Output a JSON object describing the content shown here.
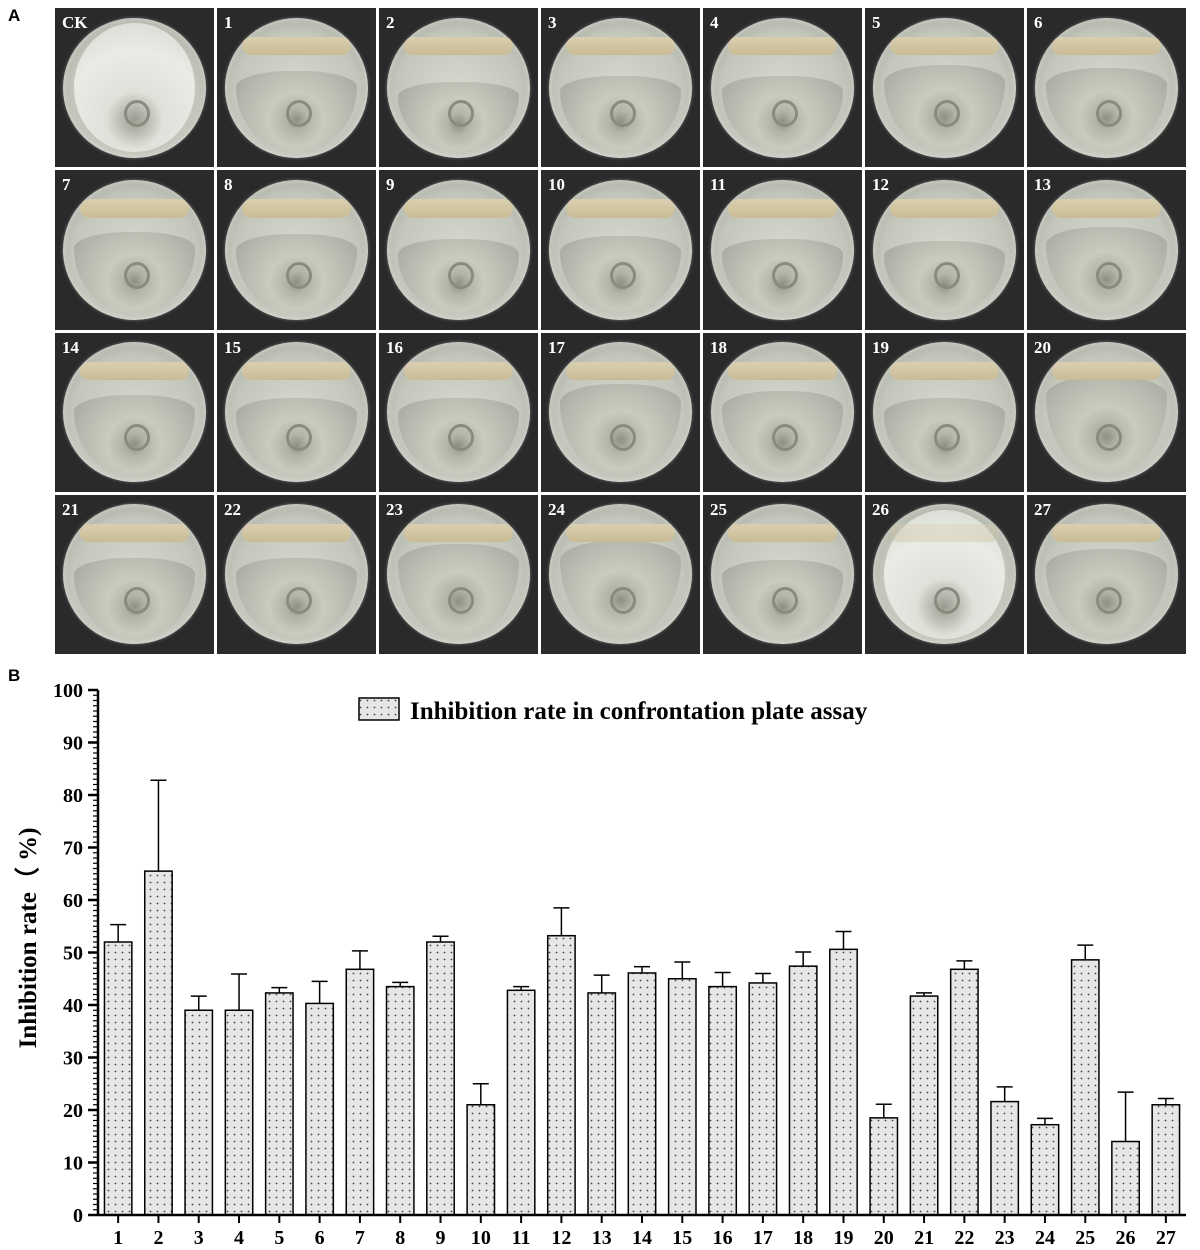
{
  "panel_a": {
    "letter": "A",
    "plates": [
      "CK",
      "1",
      "2",
      "3",
      "4",
      "5",
      "6",
      "7",
      "8",
      "9",
      "10",
      "11",
      "12",
      "13",
      "14",
      "15",
      "16",
      "17",
      "18",
      "19",
      "20",
      "21",
      "22",
      "23",
      "24",
      "25",
      "26",
      "27"
    ]
  },
  "panel_b": {
    "letter": "B"
  },
  "chart_data": {
    "type": "bar",
    "title": "",
    "legend": "Inhibition rate in confrontation plate assay",
    "legend_position": "top",
    "ylabel": "Inhibition rate（ %)",
    "xlabel": "",
    "ylim": [
      0,
      100
    ],
    "yticks": [
      "0",
      "10",
      "20",
      "30",
      "40",
      "50",
      "60",
      "70",
      "80",
      "90",
      "100"
    ],
    "grid": false,
    "bar_fill": "#e4e4e4",
    "categories": [
      "1",
      "2",
      "3",
      "4",
      "5",
      "6",
      "7",
      "8",
      "9",
      "10",
      "11",
      "12",
      "13",
      "14",
      "15",
      "16",
      "17",
      "18",
      "19",
      "20",
      "21",
      "22",
      "23",
      "24",
      "25",
      "26",
      "27"
    ],
    "values": [
      52,
      65.5,
      39,
      39,
      42.3,
      40.3,
      46.8,
      43.5,
      52,
      21,
      42.8,
      53.2,
      42.3,
      46.1,
      45,
      43.5,
      44.2,
      47.4,
      50.6,
      18.5,
      41.7,
      46.8,
      21.6,
      17.2,
      48.6,
      14,
      21
    ]
  }
}
